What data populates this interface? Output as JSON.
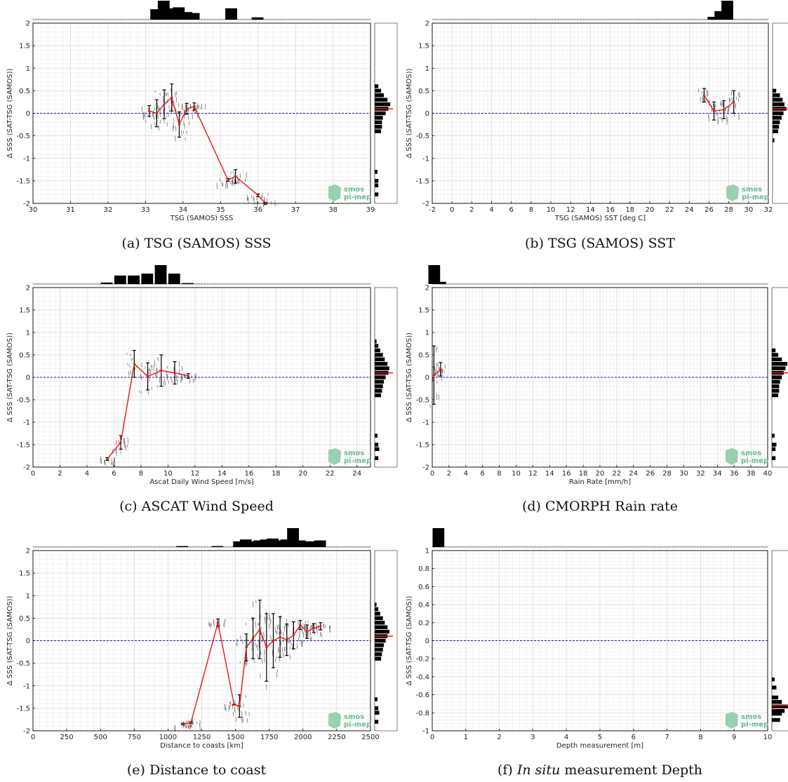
{
  "figure_panels": [
    "a",
    "b",
    "c",
    "d",
    "e",
    "f"
  ],
  "logo": {
    "line1": "smos",
    "line2": "pi-mep",
    "color": "#7fc5a0"
  },
  "colors": {
    "binned_line": "#e8141b",
    "zero_line": "#1a1aa8",
    "scatter": "#555555",
    "histogram": "#000000"
  },
  "chart_data": [
    {
      "id": "a",
      "type": "scatter",
      "caption_prefix": "(a)",
      "caption": "TSG (SAMOS) SSS",
      "xlabel": "TSG (SAMOS) SSS",
      "ylabel": "Δ SSS (SAT-TSG (SAMOS))",
      "xlim": [
        30,
        39
      ],
      "ylim": [
        -2,
        2
      ],
      "xticks": [
        30,
        31,
        32,
        33,
        34,
        35,
        36,
        37,
        38,
        39
      ],
      "yticks": [
        -2,
        -1.5,
        -1,
        -0.5,
        0,
        0.5,
        1,
        1.5,
        2
      ],
      "binned_mean": {
        "x": [
          33.1,
          33.3,
          33.5,
          33.7,
          33.9,
          34.1,
          34.3,
          35.2,
          35.4,
          36.0,
          36.2
        ],
        "y": [
          0.05,
          0.0,
          0.2,
          0.35,
          -0.25,
          0.1,
          0.15,
          -1.48,
          -1.4,
          -1.82,
          -2.0
        ],
        "err": [
          0.12,
          0.3,
          0.32,
          0.3,
          0.28,
          0.12,
          0.08,
          0.03,
          0.15,
          0.03,
          0.02
        ]
      },
      "top_histogram": {
        "x": [
          33.3,
          33.5,
          33.7,
          33.9,
          34.1,
          34.3,
          35.3,
          36.0
        ],
        "h": [
          0.55,
          1.0,
          0.6,
          0.65,
          0.4,
          0.35,
          0.6,
          0.12
        ]
      },
      "right_histogram": {
        "y": [
          0.6,
          0.5,
          0.4,
          0.3,
          0.2,
          0.1,
          0.0,
          -0.1,
          -0.2,
          -0.3,
          -0.4,
          -1.3,
          -1.5,
          -1.6,
          -1.8
        ],
        "w": [
          0.2,
          0.35,
          0.5,
          0.7,
          0.85,
          0.75,
          0.6,
          0.45,
          0.4,
          0.4,
          0.35,
          0.15,
          0.2,
          0.2,
          0.2
        ]
      },
      "zero_line": 0
    },
    {
      "id": "b",
      "type": "scatter",
      "caption_prefix": "(b)",
      "caption": "TSG (SAMOS) SST",
      "xlabel": "TSG (SAMOS) SST [deg C]",
      "ylabel": "Δ SSS (SAT-TSG (SAMOS))",
      "xlim": [
        -2,
        32
      ],
      "ylim": [
        -2,
        2
      ],
      "xticks": [
        -2,
        0,
        2,
        4,
        6,
        8,
        10,
        12,
        14,
        16,
        18,
        20,
        22,
        24,
        26,
        28,
        30,
        32
      ],
      "yticks": [
        -2,
        -1.5,
        -1,
        -0.5,
        0,
        0.5,
        1,
        1.5,
        2
      ],
      "binned_mean": {
        "x": [
          25.5,
          26.5,
          27.5,
          28.5
        ],
        "y": [
          0.4,
          0.05,
          0.08,
          0.25
        ],
        "err": [
          0.15,
          0.2,
          0.2,
          0.25
        ]
      },
      "top_histogram": {
        "x": [
          26.5,
          27.2,
          27.9
        ],
        "h": [
          0.15,
          0.45,
          1.0
        ]
      },
      "right_histogram": {
        "y": [
          0.5,
          0.4,
          0.3,
          0.2,
          0.1,
          0.0,
          -0.1,
          -0.2,
          -0.3,
          -0.4,
          -0.6
        ],
        "w": [
          0.2,
          0.4,
          0.55,
          0.65,
          0.75,
          0.6,
          0.5,
          0.4,
          0.35,
          0.3,
          0.1
        ]
      },
      "zero_line": 0
    },
    {
      "id": "c",
      "type": "scatter",
      "caption_prefix": "(c)",
      "caption": "ASCAT Wind Speed",
      "xlabel": "Ascat Daily Wind Speed [m/s]",
      "ylabel": "Δ SSS (SAT-TSG (SAMOS))",
      "xlim": [
        0,
        25
      ],
      "ylim": [
        -2,
        2
      ],
      "xticks": [
        0,
        2,
        4,
        6,
        8,
        10,
        12,
        14,
        16,
        18,
        20,
        22,
        24
      ],
      "yticks": [
        -2,
        -1.5,
        -1,
        -0.5,
        0,
        0.5,
        1,
        1.5,
        2
      ],
      "binned_mean": {
        "x": [
          5.5,
          6.5,
          7.5,
          8.5,
          9.5,
          10.5,
          11.5
        ],
        "y": [
          -1.82,
          -1.45,
          0.3,
          0.02,
          0.15,
          0.1,
          0.03
        ],
        "err": [
          0.03,
          0.15,
          0.3,
          0.3,
          0.35,
          0.25,
          0.05
        ]
      },
      "top_histogram": {
        "x": [
          5.5,
          6.5,
          7.5,
          8.5,
          9.5,
          10.5,
          11.5
        ],
        "h": [
          0.08,
          0.45,
          0.45,
          0.55,
          1.0,
          0.55,
          0.05
        ]
      },
      "right_histogram": {
        "y": [
          0.8,
          0.7,
          0.6,
          0.5,
          0.4,
          0.3,
          0.2,
          0.1,
          0.0,
          -0.1,
          -0.2,
          -0.3,
          -0.4,
          -1.3,
          -1.5,
          -1.6,
          -1.8
        ],
        "w": [
          0.1,
          0.2,
          0.3,
          0.45,
          0.55,
          0.7,
          0.8,
          0.75,
          0.6,
          0.5,
          0.45,
          0.4,
          0.35,
          0.15,
          0.2,
          0.25,
          0.2
        ]
      },
      "zero_line": 0
    },
    {
      "id": "d",
      "type": "scatter",
      "caption_prefix": "(d)",
      "caption": "CMORPH Rain rate",
      "xlabel": "Rain Rate [mm/h]",
      "ylabel": "Δ SSS (SAT-TSG (SAMOS))",
      "xlim": [
        0,
        40
      ],
      "ylim": [
        -2,
        2
      ],
      "xticks": [
        0,
        2,
        4,
        6,
        8,
        10,
        12,
        14,
        16,
        18,
        20,
        22,
        24,
        26,
        28,
        30,
        32,
        34,
        36,
        38,
        40
      ],
      "yticks": [
        -2,
        -1.5,
        -1,
        -0.5,
        0,
        0.5,
        1,
        1.5,
        2
      ],
      "binned_mean": {
        "x": [
          0.2,
          1.0
        ],
        "y": [
          0.05,
          0.18
        ],
        "err": [
          0.65,
          0.15
        ]
      },
      "top_histogram": {
        "x": [
          0.3,
          1.0
        ],
        "h": [
          1.0,
          0.12
        ]
      },
      "right_histogram": {
        "y": [
          0.6,
          0.5,
          0.4,
          0.3,
          0.2,
          0.1,
          0.0,
          -0.1,
          -0.2,
          -0.3,
          -0.4,
          -1.3,
          -1.5,
          -1.6,
          -1.8
        ],
        "w": [
          0.2,
          0.35,
          0.55,
          0.85,
          0.75,
          0.65,
          0.55,
          0.45,
          0.4,
          0.4,
          0.35,
          0.15,
          0.25,
          0.2,
          0.2
        ]
      },
      "zero_line": 0
    },
    {
      "id": "e",
      "type": "scatter",
      "caption_prefix": "(e)",
      "caption": "Distance to coast",
      "xlabel": "Distance to coasts [km]",
      "ylabel": "Δ SSS (SAT-TSG (SAMOS))",
      "xlim": [
        0,
        2500
      ],
      "ylim": [
        -2,
        2
      ],
      "xticks": [
        0,
        250,
        500,
        750,
        1000,
        1250,
        1500,
        1750,
        2000,
        2250,
        2500
      ],
      "yticks": [
        -2,
        -1.5,
        -1,
        -0.5,
        0,
        0.5,
        1,
        1.5,
        2
      ],
      "binned_mean": {
        "x": [
          1110,
          1170,
          1370,
          1490,
          1530,
          1580,
          1630,
          1680,
          1730,
          1780,
          1830,
          1880,
          1930,
          1980,
          2030,
          2080,
          2130
        ],
        "y": [
          -1.85,
          -1.82,
          0.4,
          -1.42,
          -1.45,
          -0.15,
          0.05,
          0.25,
          -0.15,
          0.0,
          0.08,
          0.02,
          0.12,
          0.35,
          0.2,
          0.28,
          0.32
        ],
        "err": [
          0.02,
          0.02,
          0.08,
          0.01,
          0.25,
          0.3,
          0.45,
          0.65,
          0.75,
          0.6,
          0.45,
          0.35,
          0.3,
          0.1,
          0.15,
          0.1,
          0.08
        ]
      },
      "top_histogram": {
        "x": [
          1110,
          1370,
          1530,
          1580,
          1630,
          1680,
          1730,
          1780,
          1830,
          1880,
          1930,
          1980,
          2030,
          2080,
          2130
        ],
        "h": [
          0.05,
          0.05,
          0.3,
          0.4,
          0.3,
          0.35,
          0.4,
          0.45,
          0.35,
          0.4,
          1.0,
          0.35,
          0.3,
          0.3,
          0.35
        ]
      },
      "right_histogram": {
        "y": [
          0.8,
          0.7,
          0.6,
          0.5,
          0.4,
          0.3,
          0.2,
          0.1,
          0.0,
          -0.1,
          -0.2,
          -0.3,
          -0.4,
          -1.3,
          -1.5,
          -1.6,
          -1.8
        ],
        "w": [
          0.1,
          0.2,
          0.3,
          0.45,
          0.55,
          0.7,
          0.8,
          0.7,
          0.6,
          0.5,
          0.45,
          0.4,
          0.35,
          0.15,
          0.2,
          0.25,
          0.2
        ]
      },
      "zero_line": 0
    },
    {
      "id": "f",
      "type": "scatter",
      "caption_prefix": "(f)",
      "caption_italic": "In situ",
      "caption": "measurement Depth",
      "xlabel": "Depth measurement [m]",
      "ylabel": "Δ SSS (SAT-TSG (SAMOS))",
      "xlim": [
        0,
        10
      ],
      "ylim": [
        -1,
        1
      ],
      "xticks": [
        0,
        1,
        2,
        3,
        4,
        5,
        6,
        7,
        8,
        9,
        10
      ],
      "yticks": [
        -1,
        -0.8,
        -0.6,
        -0.4,
        -0.2,
        0,
        0.2,
        0.4,
        0.6,
        0.8,
        1
      ],
      "binned_mean": {
        "x": [],
        "y": [],
        "err": []
      },
      "top_histogram": {
        "x": [
          0.2
        ],
        "h": [
          1.0
        ]
      },
      "right_histogram": {
        "y": [
          -0.43,
          -0.52,
          -0.63,
          -0.68,
          -0.73,
          -0.78,
          -0.81,
          -0.88
        ],
        "w": [
          0.15,
          0.25,
          0.35,
          0.55,
          0.9,
          0.7,
          0.55,
          0.45
        ]
      },
      "zero_line": 0
    }
  ]
}
